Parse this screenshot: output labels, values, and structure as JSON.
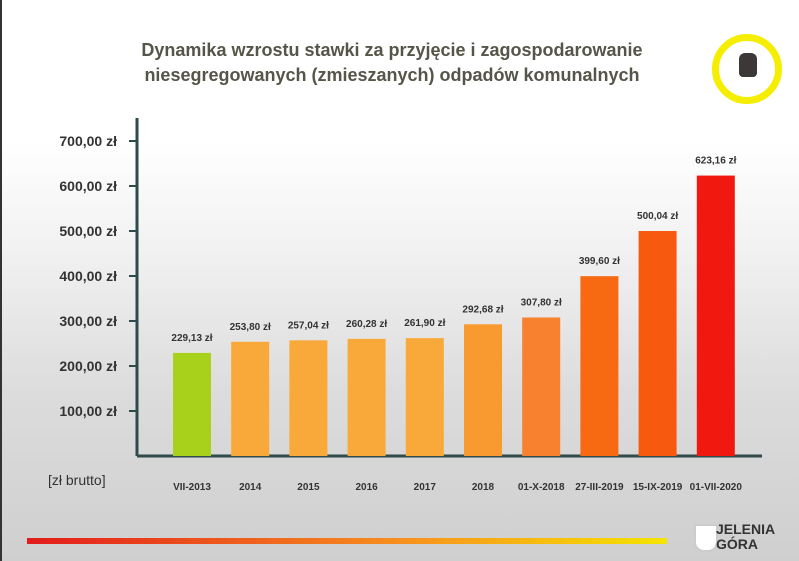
{
  "logo_text": [
    "JELENIA",
    "GÓRA"
  ],
  "chart_data": {
    "type": "bar",
    "title": "Dynamika wzrostu stawki za przyjęcie i zagospodarowanie niesegregowanych (zmieszanych) odpadów komunalnych",
    "ylabel": "[zł brutto]",
    "ylim": [
      0,
      750
    ],
    "yticks": [
      100,
      200,
      300,
      400,
      500,
      600,
      700
    ],
    "ytick_labels": [
      "100,00 zł",
      "200,00 zł",
      "300,00 zł",
      "400,00 zł",
      "500,00 zł",
      "600,00 zł",
      "700,00 zł"
    ],
    "categories": [
      "VII-2013",
      "2014",
      "2015",
      "2016",
      "2017",
      "2018",
      "01-X-2018",
      "27-III-2019",
      "15-IX-2019",
      "01-VII-2020"
    ],
    "values": [
      229.13,
      253.8,
      257.04,
      260.28,
      261.9,
      292.68,
      307.8,
      399.6,
      500.04,
      623.16
    ],
    "data_labels": [
      "229,13 zł",
      "253,80 zł",
      "257,04 zł",
      "260,28 zł",
      "261,90 zł",
      "292,68 zł",
      "307,80 zł",
      "399,60 zł",
      "500,04 zł",
      "623,16 zł"
    ],
    "colors": [
      "#a8d11c",
      "#f9a83a",
      "#f9a83a",
      "#f9a83a",
      "#f9a83a",
      "#f99a30",
      "#f7812e",
      "#f76a12",
      "#f75a0e",
      "#f0180f"
    ]
  }
}
